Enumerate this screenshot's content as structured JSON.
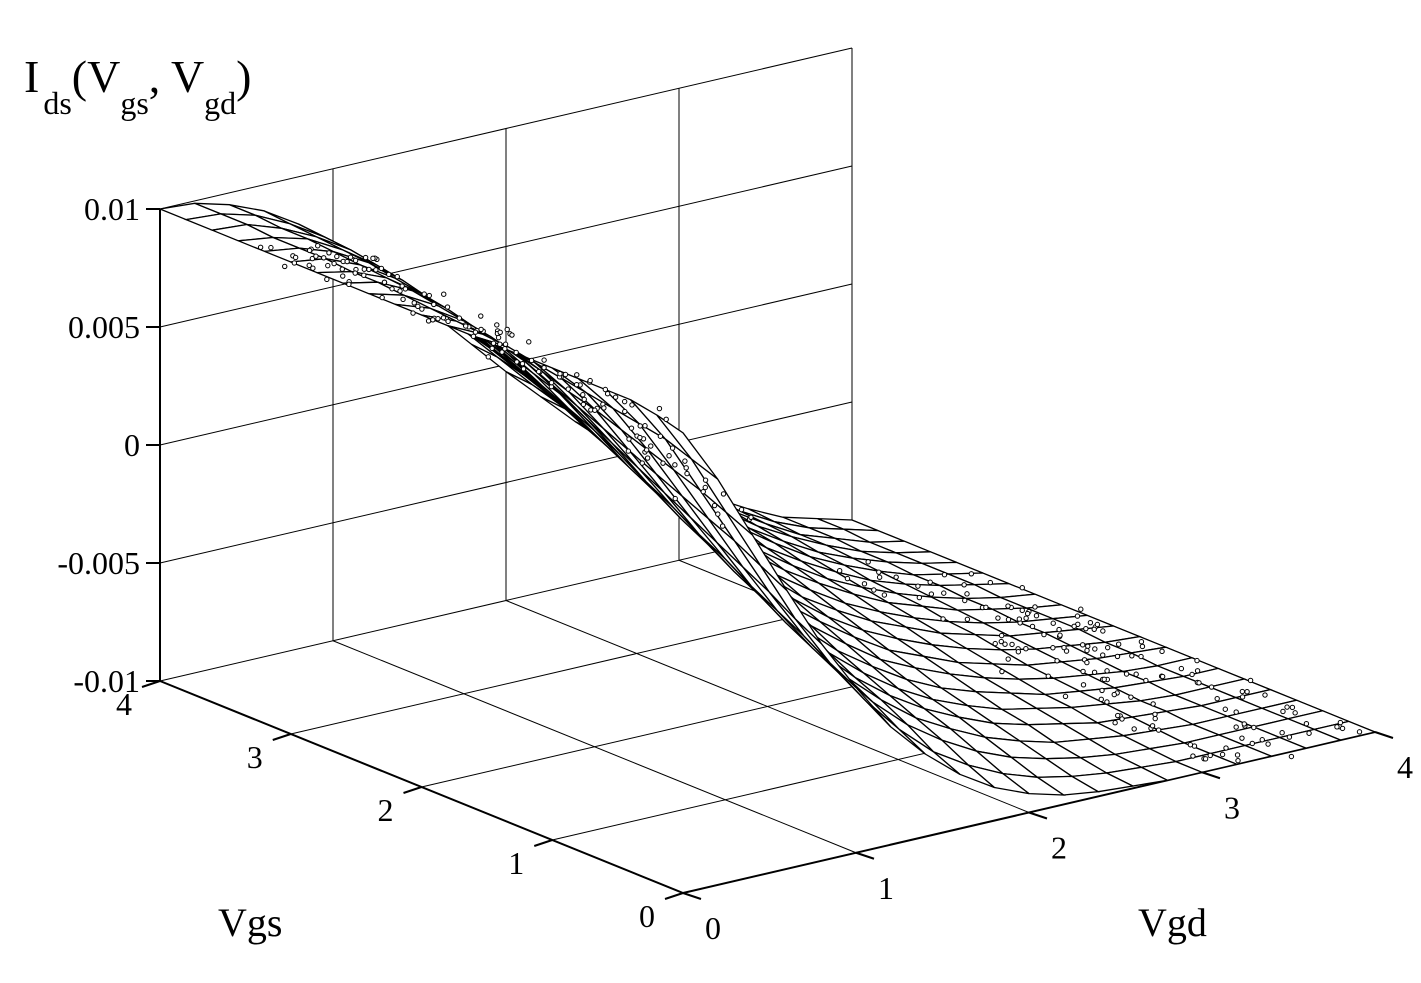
{
  "chart_data": {
    "type": "surface",
    "title": "",
    "zlabel": {
      "main": "I",
      "sub_main": "ds",
      "open": "(V",
      "sub_a": "gs",
      "mid": ", V",
      "sub_b": "gd",
      "close": ")"
    },
    "xlabel": "Vgd",
    "ylabel": "Vgs",
    "xlim": [
      0,
      4
    ],
    "ylim": [
      0,
      4
    ],
    "zlim": [
      -0.01,
      0.01
    ],
    "x_ticks": [
      "0",
      "1",
      "2",
      "3",
      "4"
    ],
    "y_ticks": [
      "0",
      "1",
      "2",
      "3",
      "4"
    ],
    "z_ticks": [
      "-0.01",
      "-0.005",
      "0",
      "0.005",
      "0.01"
    ],
    "grid": true,
    "series": [
      {
        "kind": "surface",
        "mesh_x": 21,
        "mesh_y": 21,
        "z_grid_by_vgs_row": [
          [
            0.0095,
            0.0072,
            0.0045,
            0.0018,
            -0.0008,
            -0.003,
            -0.005,
            -0.0065,
            -0.0077,
            -0.0086,
            -0.0092,
            -0.0096,
            -0.0098,
            -0.0099,
            -0.01,
            -0.01,
            -0.01,
            -0.01,
            -0.01,
            -0.01,
            -0.01
          ],
          [
            0.0098,
            0.0076,
            0.005,
            0.0024,
            -0.0002,
            -0.0024,
            -0.0043,
            -0.0059,
            -0.0072,
            -0.0081,
            -0.0088,
            -0.0093,
            -0.0096,
            -0.0098,
            -0.0099,
            -0.01,
            -0.01,
            -0.01,
            -0.01,
            -0.01,
            -0.01
          ],
          [
            0.01,
            0.008,
            0.0055,
            0.003,
            0.0005,
            -0.0017,
            -0.0036,
            -0.0052,
            -0.0065,
            -0.0075,
            -0.0083,
            -0.0089,
            -0.0093,
            -0.0096,
            -0.0098,
            -0.0099,
            -0.01,
            -0.01,
            -0.01,
            -0.01,
            -0.01
          ],
          [
            0.01,
            0.0082,
            0.0059,
            0.0035,
            0.0011,
            -0.0011,
            -0.003,
            -0.0046,
            -0.0059,
            -0.007,
            -0.0078,
            -0.0085,
            -0.009,
            -0.0094,
            -0.0096,
            -0.0098,
            -0.0099,
            -0.01,
            -0.01,
            -0.01,
            -0.01
          ],
          [
            0.01,
            0.0084,
            0.0063,
            0.004,
            0.0017,
            -0.0005,
            -0.0024,
            -0.004,
            -0.0054,
            -0.0065,
            -0.0074,
            -0.0081,
            -0.0087,
            -0.0091,
            -0.0094,
            -0.0097,
            -0.0098,
            -0.0099,
            -0.01,
            -0.01,
            -0.01
          ],
          [
            0.01,
            0.0086,
            0.0067,
            0.0045,
            0.0023,
            0.0002,
            -0.0017,
            -0.0034,
            -0.0048,
            -0.006,
            -0.007,
            -0.0078,
            -0.0084,
            -0.0089,
            -0.0092,
            -0.0095,
            -0.0097,
            -0.0099,
            -0.01,
            -0.01,
            -0.01
          ],
          [
            0.01,
            0.0088,
            0.0071,
            0.005,
            0.0029,
            0.0008,
            -0.0011,
            -0.0028,
            -0.0042,
            -0.0055,
            -0.0065,
            -0.0074,
            -0.0081,
            -0.0086,
            -0.009,
            -0.0094,
            -0.0096,
            -0.0098,
            -0.0099,
            -0.01,
            -0.01
          ],
          [
            0.01,
            0.009,
            0.0074,
            0.0055,
            0.0035,
            0.0015,
            -0.0004,
            -0.0021,
            -0.0036,
            -0.0049,
            -0.006,
            -0.007,
            -0.0077,
            -0.0083,
            -0.0088,
            -0.0092,
            -0.0095,
            -0.0097,
            -0.0099,
            -0.01,
            -0.01
          ],
          [
            0.01,
            0.0092,
            0.0078,
            0.006,
            0.0041,
            0.0021,
            0.0002,
            -0.0015,
            -0.003,
            -0.0044,
            -0.0055,
            -0.0065,
            -0.0074,
            -0.008,
            -0.0086,
            -0.009,
            -0.0094,
            -0.0096,
            -0.0098,
            -0.0099,
            -0.01
          ],
          [
            0.01,
            0.0093,
            0.0081,
            0.0065,
            0.0047,
            0.0028,
            0.0009,
            -0.0008,
            -0.0024,
            -0.0038,
            -0.005,
            -0.0061,
            -0.007,
            -0.0077,
            -0.0083,
            -0.0088,
            -0.0092,
            -0.0095,
            -0.0097,
            -0.0099,
            -0.01
          ],
          [
            0.01,
            0.0094,
            0.0084,
            0.007,
            0.0053,
            0.0034,
            0.0015,
            -0.0002,
            -0.0018,
            -0.0033,
            -0.0045,
            -0.0057,
            -0.0066,
            -0.0074,
            -0.008,
            -0.0086,
            -0.009,
            -0.0094,
            -0.0096,
            -0.0098,
            -0.01
          ],
          [
            0.01,
            0.0095,
            0.0086,
            0.0073,
            0.0057,
            0.0039,
            0.0021,
            0.0004,
            -0.0012,
            -0.0027,
            -0.004,
            -0.0052,
            -0.0062,
            -0.0071,
            -0.0078,
            -0.0084,
            -0.0089,
            -0.0093,
            -0.0096,
            -0.0098,
            -0.01
          ],
          [
            0.01,
            0.0096,
            0.0088,
            0.0076,
            0.0061,
            0.0044,
            0.0027,
            0.001,
            -0.0006,
            -0.0021,
            -0.0035,
            -0.0047,
            -0.0058,
            -0.0067,
            -0.0075,
            -0.0082,
            -0.0087,
            -0.0092,
            -0.0095,
            -0.0098,
            -0.01
          ],
          [
            0.01,
            0.0097,
            0.009,
            0.0079,
            0.0065,
            0.0049,
            0.0032,
            0.0015,
            -0.0001,
            -0.0016,
            -0.003,
            -0.0043,
            -0.0054,
            -0.0064,
            -0.0073,
            -0.008,
            -0.0086,
            -0.0091,
            -0.0095,
            -0.0098,
            -0.01
          ],
          [
            0.01,
            0.0097,
            0.0091,
            0.0081,
            0.0068,
            0.0053,
            0.0037,
            0.0021,
            0.0005,
            -0.001,
            -0.0025,
            -0.0038,
            -0.005,
            -0.0061,
            -0.007,
            -0.0078,
            -0.0085,
            -0.009,
            -0.0094,
            -0.0097,
            -0.01
          ],
          [
            0.01,
            0.0098,
            0.0092,
            0.0083,
            0.0071,
            0.0057,
            0.0041,
            0.0026,
            0.001,
            -0.0005,
            -0.002,
            -0.0034,
            -0.0046,
            -0.0057,
            -0.0067,
            -0.0076,
            -0.0083,
            -0.0089,
            -0.0094,
            -0.0097,
            -0.01
          ],
          [
            0.01,
            0.0098,
            0.0093,
            0.0085,
            0.0074,
            0.006,
            0.0045,
            0.003,
            0.0015,
            0.0,
            -0.0015,
            -0.0029,
            -0.0042,
            -0.0054,
            -0.0065,
            -0.0074,
            -0.0082,
            -0.0088,
            -0.0093,
            -0.0097,
            -0.01
          ],
          [
            0.01,
            0.0098,
            0.0094,
            0.0086,
            0.0076,
            0.0063,
            0.0049,
            0.0034,
            0.0019,
            0.0004,
            -0.0011,
            -0.0025,
            -0.0038,
            -0.0051,
            -0.0062,
            -0.0072,
            -0.008,
            -0.0087,
            -0.0093,
            -0.0097,
            -0.01
          ],
          [
            0.01,
            0.0099,
            0.0094,
            0.0087,
            0.0078,
            0.0066,
            0.0052,
            0.0038,
            0.0023,
            0.0008,
            -0.0007,
            -0.0021,
            -0.0035,
            -0.0048,
            -0.006,
            -0.007,
            -0.0079,
            -0.0087,
            -0.0092,
            -0.0097,
            -0.01
          ],
          [
            0.01,
            0.0099,
            0.0095,
            0.0088,
            0.0079,
            0.0068,
            0.0055,
            0.0041,
            0.0026,
            0.0011,
            -0.0004,
            -0.0018,
            -0.0032,
            -0.0045,
            -0.0057,
            -0.0068,
            -0.0078,
            -0.0086,
            -0.0092,
            -0.0096,
            -0.01
          ],
          [
            0.01,
            0.0099,
            0.0095,
            0.0089,
            0.008,
            0.0069,
            0.0056,
            0.0042,
            0.0027,
            0.0012,
            -0.0003,
            -0.0017,
            -0.0031,
            -0.0044,
            -0.0056,
            -0.0067,
            -0.0077,
            -0.0085,
            -0.0092,
            -0.0096,
            -0.01
          ]
        ]
      },
      {
        "kind": "scatter",
        "marker": "open-circle",
        "region": "measured points along surface edge near Vgs=0 and near Vgd=4"
      }
    ]
  }
}
